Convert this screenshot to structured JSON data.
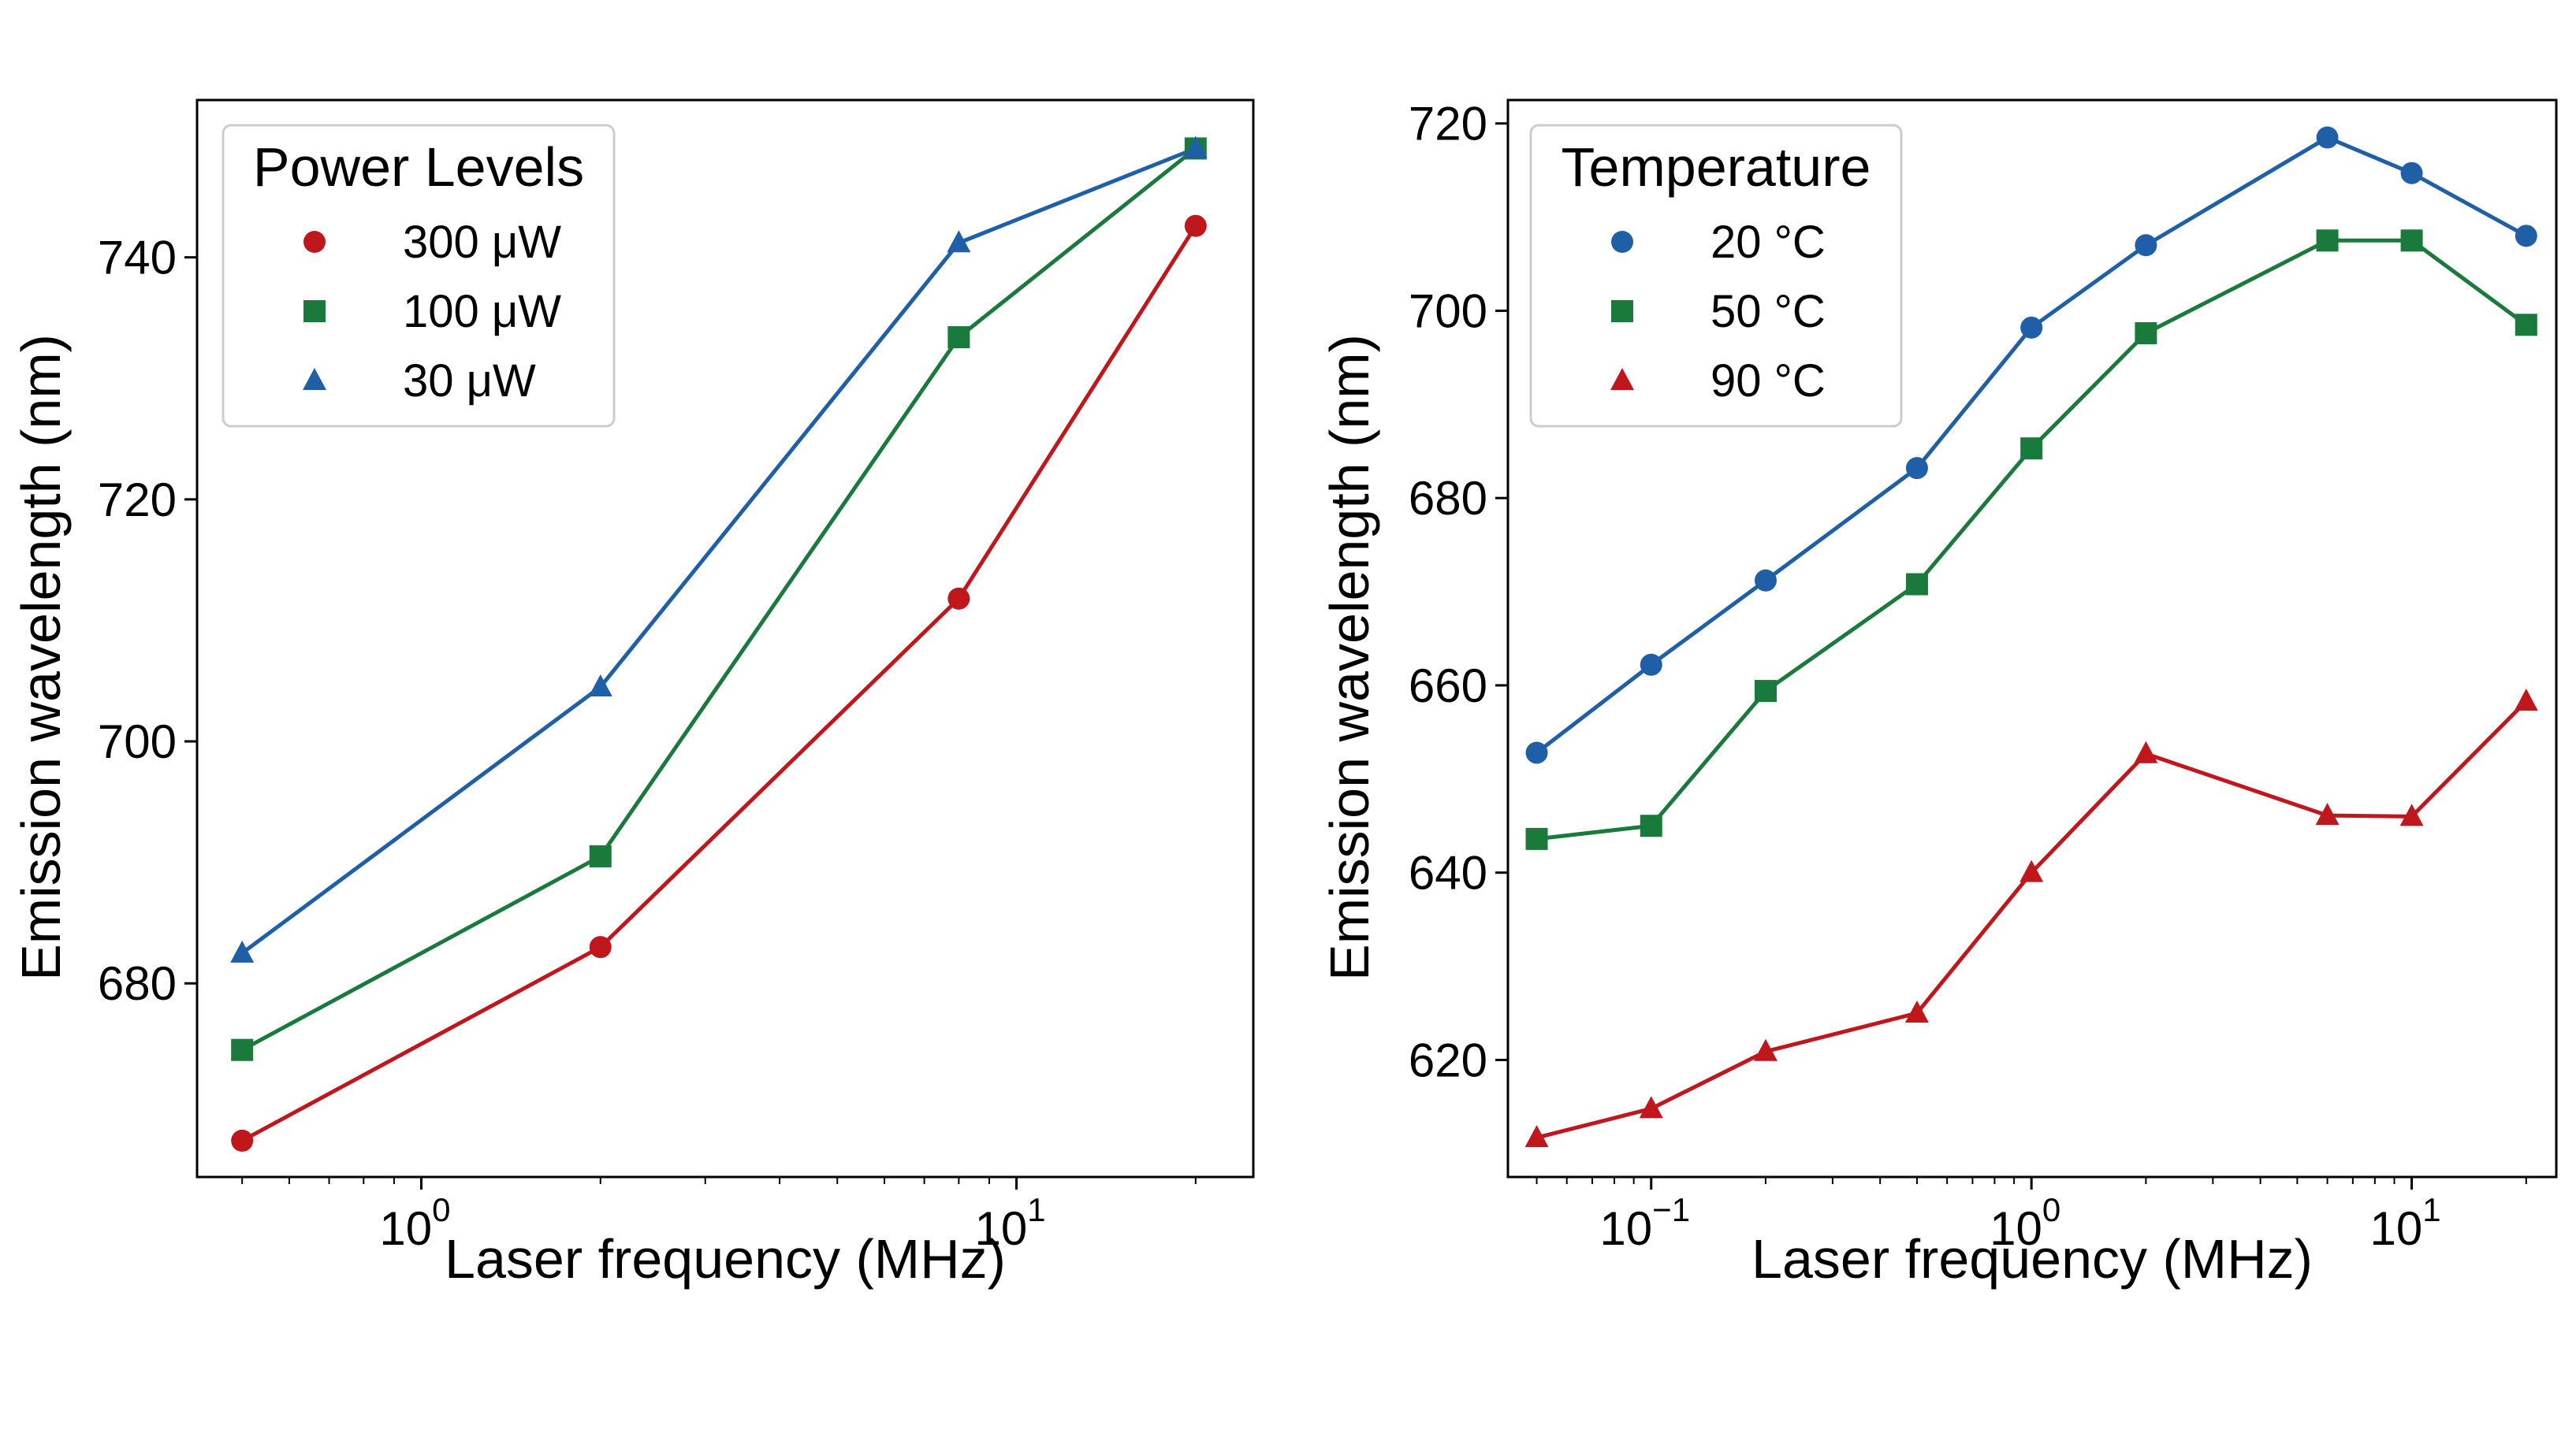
{
  "chart_data": [
    {
      "type": "line",
      "xscale": "log",
      "xlabel": "Laser frequency (MHz)",
      "ylabel": "Emission wavelength (nm)",
      "xlim": [
        0.42,
        25
      ],
      "ylim": [
        664,
        753
      ],
      "xticks": [
        {
          "base": "10",
          "exp": "0"
        },
        {
          "base": "10",
          "exp": "1"
        }
      ],
      "yticks": [
        "680",
        "700",
        "720",
        "740"
      ],
      "legend": {
        "title": "Power Levels",
        "position": "upper left"
      },
      "series": [
        {
          "name": "300 μW",
          "color": "#c0171d",
          "marker": "circle",
          "x": [
            0.5,
            2,
            8,
            20
          ],
          "y": [
            667,
            683,
            711.8,
            742.6
          ]
        },
        {
          "name": "100 μW",
          "color": "#1a7a3c",
          "marker": "square",
          "x": [
            0.5,
            2,
            8,
            20
          ],
          "y": [
            674.5,
            690.5,
            733.4,
            749
          ]
        },
        {
          "name": "30 μW",
          "color": "#1f5fa8",
          "marker": "triangle",
          "x": [
            0.5,
            2,
            8,
            20
          ],
          "y": [
            682.5,
            704.5,
            741.2,
            749
          ]
        }
      ]
    },
    {
      "type": "line",
      "xscale": "log",
      "xlabel": "Laser frequency (MHz)",
      "ylabel": "Emission wavelength (nm)",
      "xlim": [
        0.042,
        24
      ],
      "ylim": [
        607.5,
        722.5
      ],
      "xticks": [
        {
          "base": "10",
          "exp": "−1"
        },
        {
          "base": "10",
          "exp": "0"
        },
        {
          "base": "10",
          "exp": "1"
        }
      ],
      "yticks": [
        "620",
        "640",
        "660",
        "680",
        "700",
        "720"
      ],
      "legend": {
        "title": "Temperature",
        "position": "upper left"
      },
      "series": [
        {
          "name": "20 °C",
          "color": "#1f5fa8",
          "marker": "circle",
          "x": [
            0.05,
            0.1,
            0.2,
            0.5,
            1,
            2,
            6,
            10,
            20
          ],
          "y": [
            652.8,
            662.2,
            671.2,
            683.2,
            698.2,
            707,
            718.5,
            714.7,
            708
          ]
        },
        {
          "name": "50 °C",
          "color": "#1a7a3c",
          "marker": "square",
          "x": [
            0.05,
            0.1,
            0.2,
            0.5,
            1,
            2,
            6,
            10,
            20
          ],
          "y": [
            643.6,
            645,
            659.4,
            670.8,
            685.3,
            697.6,
            707.5,
            707.5,
            698.5
          ]
        },
        {
          "name": "90 °C",
          "color": "#c0171d",
          "marker": "triangle",
          "x": [
            0.05,
            0.1,
            0.2,
            0.5,
            1,
            2,
            6,
            10,
            20
          ],
          "y": [
            611.7,
            614.8,
            620.9,
            625,
            640,
            652.7,
            646.1,
            646,
            658.3
          ]
        }
      ]
    }
  ]
}
